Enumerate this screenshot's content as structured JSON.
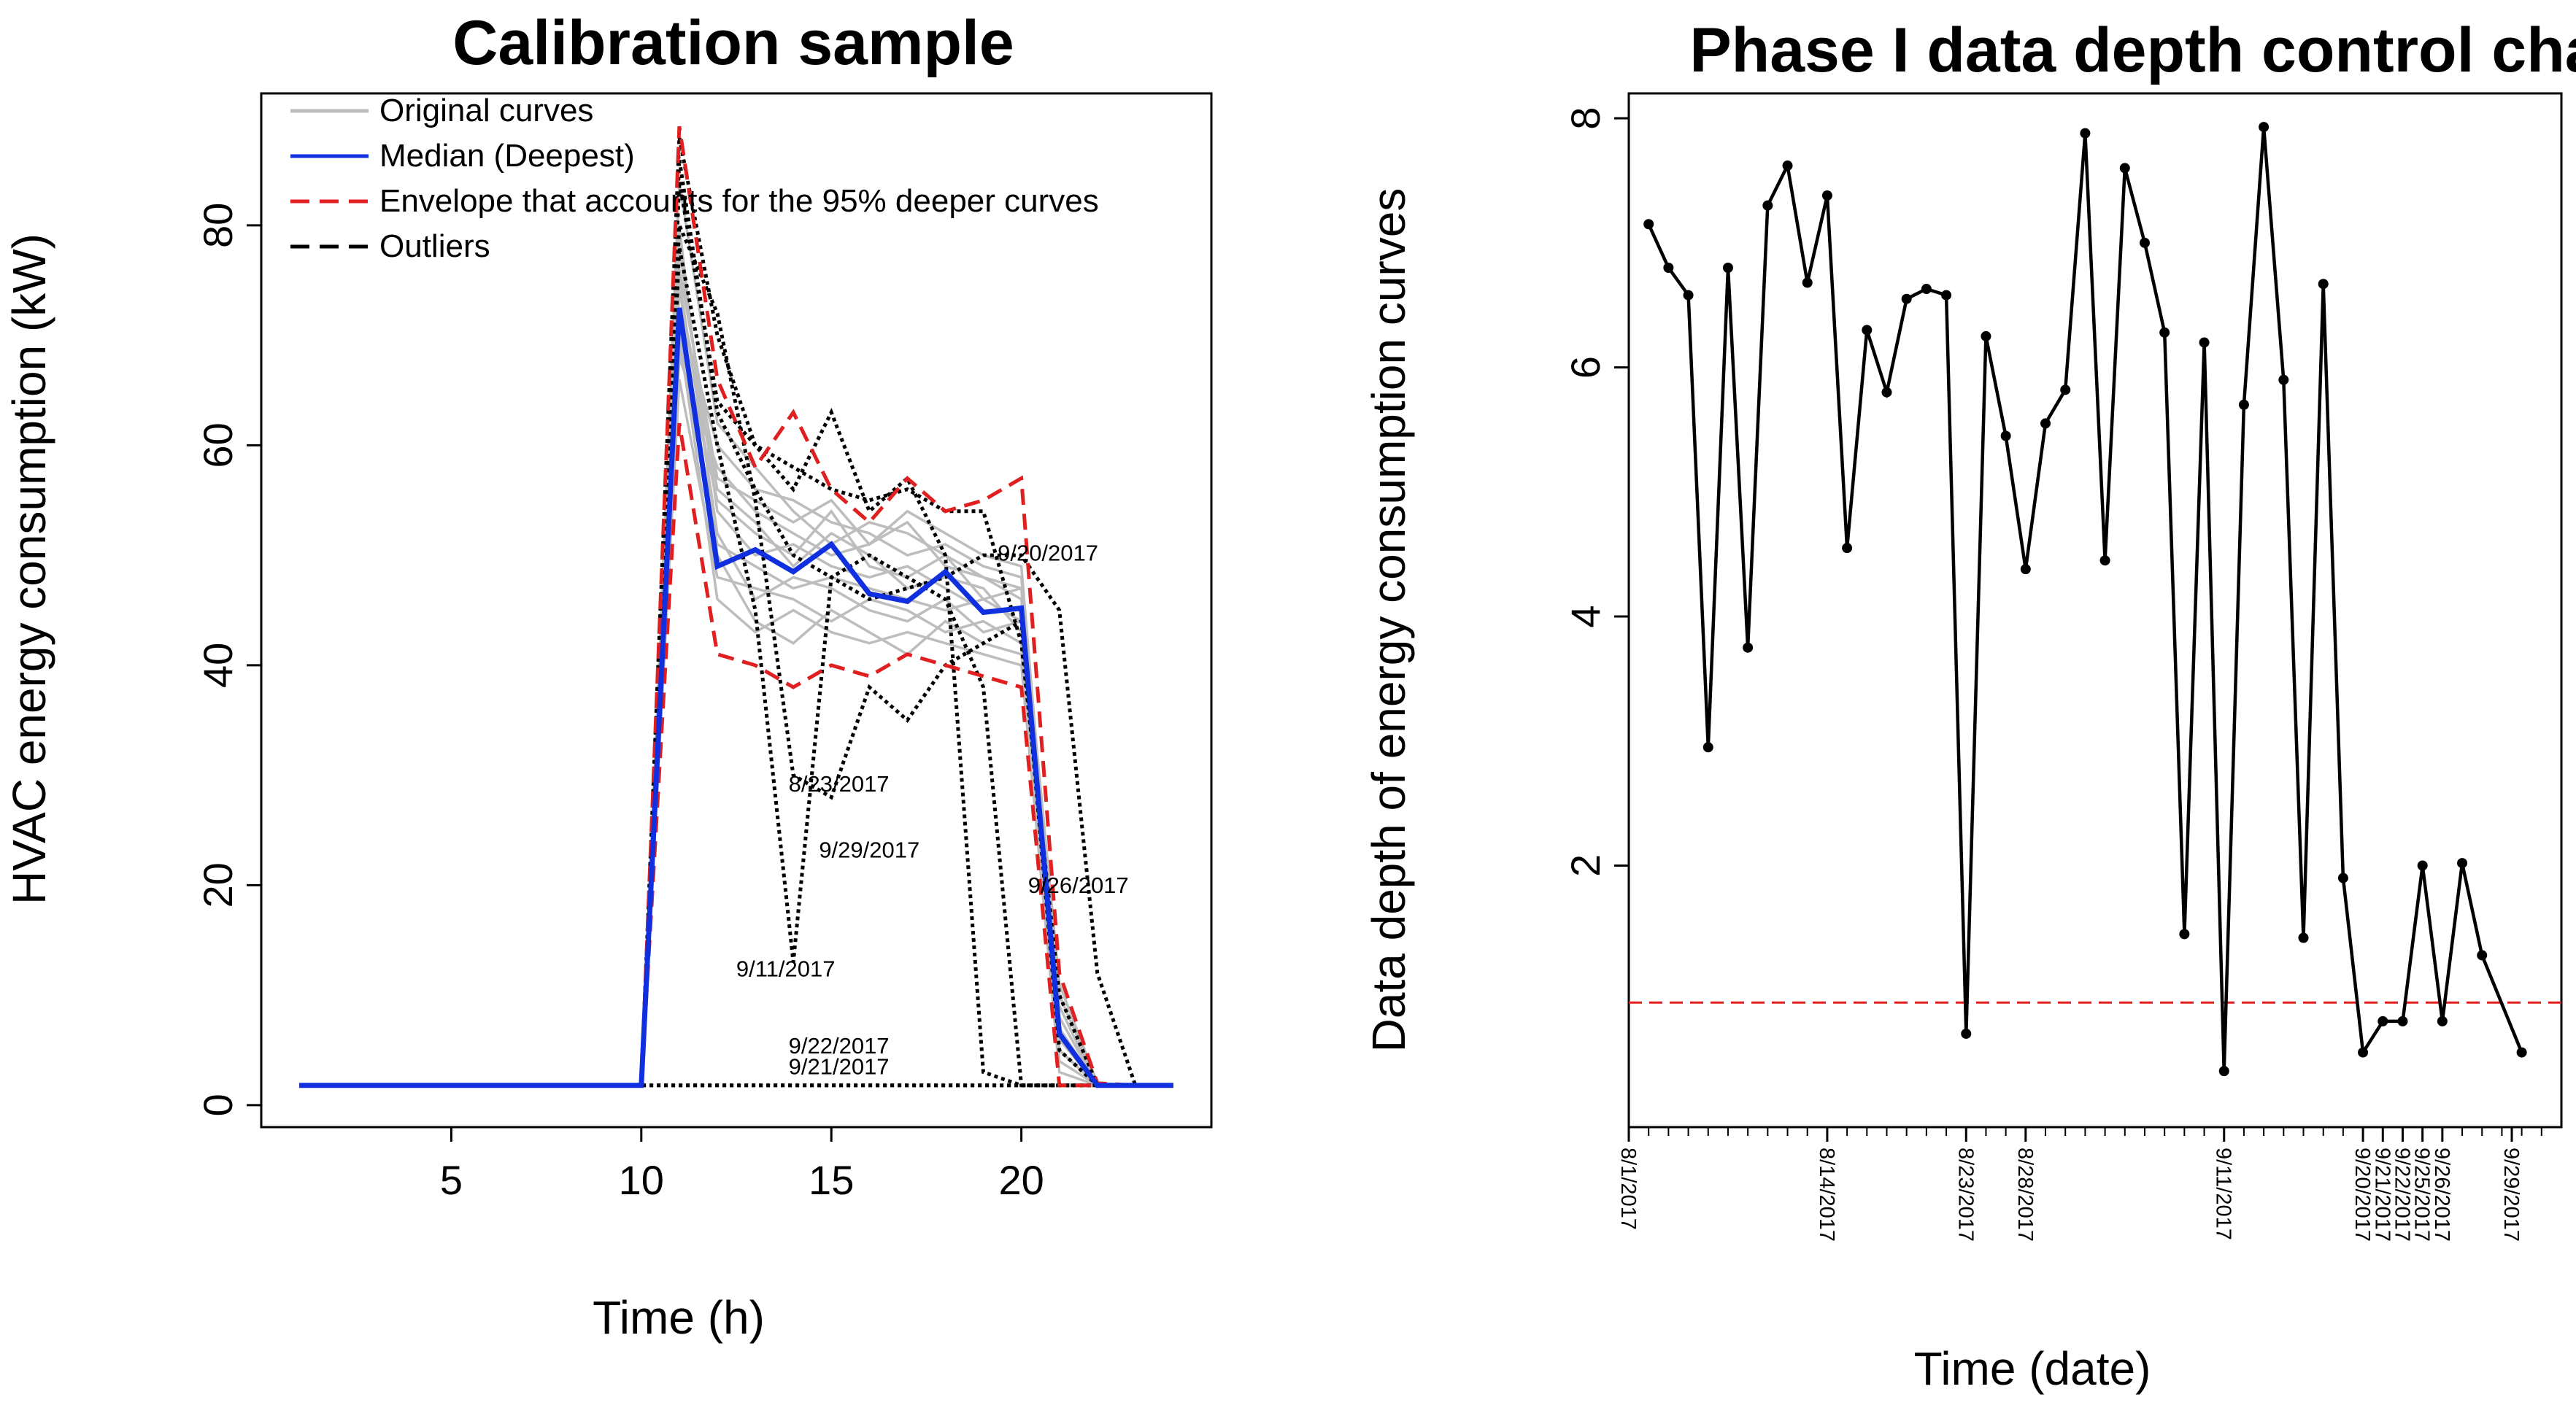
{
  "colors": {
    "original": "#bdbdbd",
    "median": "#1030e0",
    "envelope": "#e02020",
    "outlier": "#000000",
    "limit": "#e02020",
    "depth": "#000000"
  },
  "chart_data": [
    {
      "type": "line",
      "title": "Calibration sample",
      "xlabel": "Time (h)",
      "ylabel": "HVAC energy consumption (kW)",
      "xlim": [
        0,
        25
      ],
      "ylim": [
        -2,
        92
      ],
      "xticks": [
        5,
        10,
        15,
        20
      ],
      "yticks": [
        0,
        20,
        40,
        60,
        80
      ],
      "legend": {
        "position": "top-left",
        "entries": [
          "Original curves",
          "Median (Deepest)",
          "Envelope that accounts for the 95% deeper curves",
          "Outliers"
        ]
      },
      "x": [
        1,
        2,
        3,
        4,
        5,
        6,
        7,
        8,
        9,
        10,
        11,
        12,
        13,
        14,
        15,
        16,
        17,
        18,
        19,
        20,
        21,
        22,
        23,
        24
      ],
      "original_curves": [
        [
          1.8,
          1.8,
          1.8,
          1.8,
          1.8,
          1.8,
          1.8,
          1.8,
          1.8,
          1.8,
          70,
          55,
          52,
          50,
          54,
          49,
          48,
          50,
          46,
          47,
          8,
          1.8,
          1.8,
          1.8
        ],
        [
          1.8,
          1.8,
          1.8,
          1.8,
          1.8,
          1.8,
          1.8,
          1.8,
          1.8,
          1.8,
          75,
          52,
          46,
          48,
          47,
          45,
          44,
          46,
          43,
          44,
          5,
          1.8,
          1.8,
          1.8
        ],
        [
          1.8,
          1.8,
          1.8,
          1.8,
          1.8,
          1.8,
          1.8,
          1.8,
          1.8,
          1.8,
          68,
          58,
          54,
          52,
          50,
          51,
          53,
          49,
          48,
          46,
          10,
          2,
          1.8,
          1.8
        ],
        [
          1.8,
          1.8,
          1.8,
          1.8,
          1.8,
          1.8,
          1.8,
          1.8,
          1.8,
          1.8,
          80,
          50,
          44,
          42,
          45,
          43,
          41,
          44,
          42,
          41,
          6,
          1.8,
          1.8,
          1.8
        ],
        [
          1.8,
          1.8,
          1.8,
          1.8,
          1.8,
          1.8,
          1.8,
          1.8,
          1.8,
          1.8,
          72,
          60,
          56,
          55,
          53,
          52,
          50,
          51,
          49,
          48,
          9,
          1.8,
          1.8,
          1.8
        ],
        [
          1.8,
          1.8,
          1.8,
          1.8,
          1.8,
          1.8,
          1.8,
          1.8,
          1.8,
          1.8,
          66,
          48,
          47,
          46,
          44,
          46,
          45,
          43,
          44,
          42,
          4,
          1.8,
          1.8,
          1.8
        ],
        [
          1.8,
          1.8,
          1.8,
          1.8,
          1.8,
          1.8,
          1.8,
          1.8,
          1.8,
          1.8,
          78,
          54,
          50,
          51,
          49,
          48,
          49,
          47,
          45,
          45,
          7,
          1.8,
          1.8,
          1.8
        ],
        [
          1.8,
          1.8,
          1.8,
          1.8,
          1.8,
          1.8,
          1.8,
          1.8,
          1.8,
          1.8,
          74,
          56,
          53,
          49,
          52,
          50,
          47,
          48,
          47,
          43,
          6,
          1.8,
          1.8,
          1.8
        ],
        [
          1.8,
          1.8,
          1.8,
          1.8,
          1.8,
          1.8,
          1.8,
          1.8,
          1.8,
          1.8,
          84,
          62,
          58,
          54,
          51,
          53,
          52,
          50,
          48,
          47,
          11,
          2,
          1.8,
          1.8
        ],
        [
          1.8,
          1.8,
          1.8,
          1.8,
          1.8,
          1.8,
          1.8,
          1.8,
          1.8,
          1.8,
          70,
          46,
          43,
          45,
          43,
          42,
          43,
          42,
          41,
          40,
          3,
          1.8,
          1.8,
          1.8
        ],
        [
          1.8,
          1.8,
          1.8,
          1.8,
          1.8,
          1.8,
          1.8,
          1.8,
          1.8,
          1.8,
          76,
          57,
          55,
          53,
          55,
          51,
          54,
          52,
          50,
          49,
          8,
          1.8,
          1.8,
          1.8
        ],
        [
          1.8,
          1.8,
          1.8,
          1.8,
          1.8,
          1.8,
          1.8,
          1.8,
          1.8,
          1.8,
          69,
          51,
          49,
          47,
          48,
          47,
          46,
          45,
          46,
          44,
          5,
          1.8,
          1.8,
          1.8
        ]
      ],
      "median": [
        1.8,
        1.8,
        1.8,
        1.8,
        1.8,
        1.8,
        1.8,
        1.8,
        1.8,
        1.8,
        72.5,
        49,
        50.5,
        48.5,
        51,
        46.5,
        45.8,
        48.5,
        44.8,
        45.2,
        6.5,
        1.8,
        1.8,
        1.8
      ],
      "envelope_upper": [
        1.8,
        1.8,
        1.8,
        1.8,
        1.8,
        1.8,
        1.8,
        1.8,
        1.8,
        1.8,
        89,
        66,
        58,
        63,
        56,
        53,
        57,
        54,
        55,
        57,
        12,
        2,
        1.8,
        1.8
      ],
      "envelope_lower": [
        1.8,
        1.8,
        1.8,
        1.8,
        1.8,
        1.8,
        1.8,
        1.8,
        1.8,
        1.8,
        62,
        41,
        40,
        38,
        40,
        39,
        41,
        40,
        39,
        38,
        1.8,
        1.8,
        1.8,
        1.8
      ],
      "outliers": [
        {
          "label": "9/20/2017",
          "values": [
            1.8,
            1.8,
            1.8,
            1.8,
            1.8,
            1.8,
            1.8,
            1.8,
            1.8,
            1.8,
            86,
            63,
            56,
            50,
            48,
            46,
            47,
            48,
            50,
            50,
            45,
            12,
            1.8,
            1.8
          ],
          "label_x": 20.7,
          "label_y": 49.5
        },
        {
          "label": "8/23/2017",
          "values": [
            1.8,
            1.8,
            1.8,
            1.8,
            1.8,
            1.8,
            1.8,
            1.8,
            1.8,
            1.8,
            80,
            72,
            55,
            30,
            28,
            38,
            35,
            40,
            42,
            44,
            5,
            1.8,
            1.8,
            1.8
          ],
          "label_x": 15.2,
          "label_y": 28.5
        },
        {
          "label": "9/29/2017",
          "values": [
            1.8,
            1.8,
            1.8,
            1.8,
            1.8,
            1.8,
            1.8,
            1.8,
            1.8,
            1.8,
            84,
            64,
            60,
            56,
            63,
            54,
            57,
            50,
            3,
            1.8,
            1.8,
            1.8,
            1.8,
            1.8
          ],
          "label_x": 16,
          "label_y": 22.5
        },
        {
          "label": "9/26/2017",
          "values": [
            1.8,
            1.8,
            1.8,
            1.8,
            1.8,
            1.8,
            1.8,
            1.8,
            1.8,
            1.8,
            88,
            70,
            60,
            58,
            56,
            55,
            56,
            54,
            54,
            42,
            10,
            1.8,
            1.8,
            1.8
          ],
          "label_x": 21.5,
          "label_y": 19.3
        },
        {
          "label": "9/11/2017",
          "values": [
            1.8,
            1.8,
            1.8,
            1.8,
            1.8,
            1.8,
            1.8,
            1.8,
            1.8,
            1.8,
            78,
            60,
            45,
            13,
            48,
            50,
            48,
            46,
            38,
            1.8,
            1.8,
            1.8,
            1.8,
            1.8
          ],
          "label_x": 13.8,
          "label_y": 11.7
        },
        {
          "label": "9/22/2017",
          "values": [
            1.8,
            1.8,
            1.8,
            1.8,
            1.8,
            1.8,
            1.8,
            1.8,
            1.8,
            1.8,
            1.8,
            1.8,
            1.8,
            1.8,
            1.8,
            1.8,
            1.8,
            1.8,
            1.8,
            1.8,
            1.8,
            1.8,
            1.8,
            1.8
          ],
          "label_x": 15.2,
          "label_y": 4.7
        },
        {
          "label": "9/21/2017",
          "values": [
            1.8,
            1.8,
            1.8,
            1.8,
            1.8,
            1.8,
            1.8,
            1.8,
            1.8,
            1.8,
            1.8,
            1.8,
            1.8,
            1.8,
            1.8,
            1.8,
            1.8,
            1.8,
            1.8,
            1.8,
            1.8,
            1.8,
            1.8,
            1.8
          ],
          "label_x": 15.2,
          "label_y": 2.8
        }
      ]
    },
    {
      "type": "line",
      "title": "Phase I data depth control chart",
      "xlabel": "Time (date)",
      "ylabel": "Data depth of energy consumption curves",
      "xlim": [
        0,
        47
      ],
      "ylim": [
        -0.1,
        8.2
      ],
      "yticks": [
        2,
        4,
        6,
        8
      ],
      "control_limit": 0.9,
      "x": [
        1,
        2,
        3,
        4,
        5,
        6,
        7,
        8,
        9,
        10,
        11,
        12,
        13,
        14,
        15,
        16,
        17,
        18,
        19,
        20,
        21,
        22,
        23,
        24,
        25,
        26,
        27,
        28,
        29,
        30,
        31,
        32,
        33,
        34,
        35,
        36,
        37,
        38,
        39,
        40,
        41,
        42,
        43,
        44,
        45,
        46
      ],
      "depth": [
        7.15,
        6.8,
        6.58,
        2.95,
        6.8,
        3.75,
        7.3,
        7.62,
        6.68,
        7.38,
        4.55,
        6.3,
        5.8,
        6.55,
        6.63,
        6.58,
        0.65,
        6.25,
        5.45,
        4.38,
        5.55,
        5.82,
        7.88,
        4.45,
        7.6,
        7.0,
        6.28,
        1.45,
        6.2,
        0.35,
        5.7,
        7.93,
        5.9,
        1.42,
        6.67,
        1.9,
        0.5,
        0.75,
        0.75,
        2.0,
        0.75,
        2.02,
        1.28,
        0.5
      ],
      "depth_x": [
        1,
        2,
        3,
        4,
        5,
        6,
        7,
        8,
        9,
        10,
        11,
        12,
        13,
        14,
        15,
        16,
        17,
        18,
        19,
        20,
        21,
        22,
        23,
        24,
        25,
        26,
        27,
        28,
        29,
        30,
        31,
        32,
        33,
        34,
        35,
        36,
        37,
        38,
        39,
        40,
        41,
        42,
        43,
        45
      ],
      "date_ticks": [
        {
          "label": "8/1/2017",
          "x": 0
        },
        {
          "label": "8/14/2017",
          "x": 10
        },
        {
          "label": "8/23/2017",
          "x": 17
        },
        {
          "label": "8/28/2017",
          "x": 20
        },
        {
          "label": "9/11/2017",
          "x": 30
        },
        {
          "label": "9/20/2017",
          "x": 37
        },
        {
          "label": "9/21/2017",
          "x": 38
        },
        {
          "label": "9/22/2017",
          "x": 39
        },
        {
          "label": "9/25/2017",
          "x": 40
        },
        {
          "label": "9/26/2017",
          "x": 41
        },
        {
          "label": "9/29/2017",
          "x": 44.5
        }
      ]
    }
  ]
}
